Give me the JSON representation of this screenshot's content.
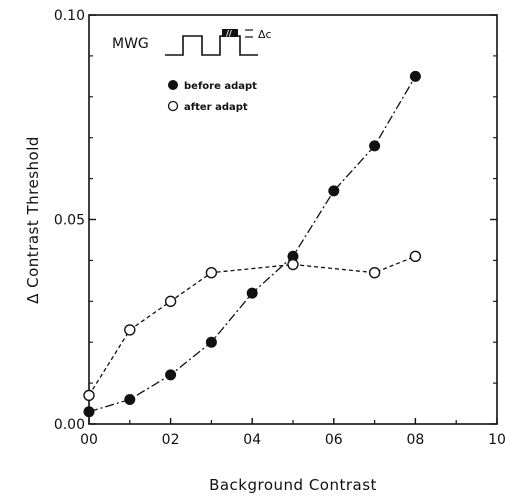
{
  "chart_data": {
    "type": "line",
    "xlabel": "Background Contrast",
    "ylabel": "Δ Contrast Threshold",
    "xlim": [
      0.0,
      1.0
    ],
    "ylim": [
      0.0,
      0.1
    ],
    "x_ticks": [
      "00",
      "02",
      "04",
      "06",
      "08",
      "10"
    ],
    "y_ticks": [
      "0.00",
      "0.05",
      "0.10"
    ],
    "grid": false,
    "legend_position": "top-left",
    "series": [
      {
        "name": "before adapt",
        "marker": "filled-circle",
        "line_style": "dash-dot",
        "color": "#111111",
        "x": [
          0.0,
          0.1,
          0.2,
          0.3,
          0.4,
          0.5,
          0.6,
          0.7,
          0.8
        ],
        "y": [
          0.003,
          0.006,
          0.012,
          0.02,
          0.032,
          0.041,
          0.057,
          0.068,
          0.085
        ]
      },
      {
        "name": "after adapt",
        "marker": "open-circle",
        "line_style": "dashed",
        "color": "#111111",
        "x": [
          0.0,
          0.1,
          0.2,
          0.3,
          0.5,
          0.7,
          0.8
        ],
        "y": [
          0.007,
          0.023,
          0.03,
          0.037,
          0.039,
          0.037,
          0.041
        ]
      }
    ],
    "inset": {
      "label": "MWG",
      "delta_label": "Δc",
      "pattern_mark": "//"
    }
  }
}
